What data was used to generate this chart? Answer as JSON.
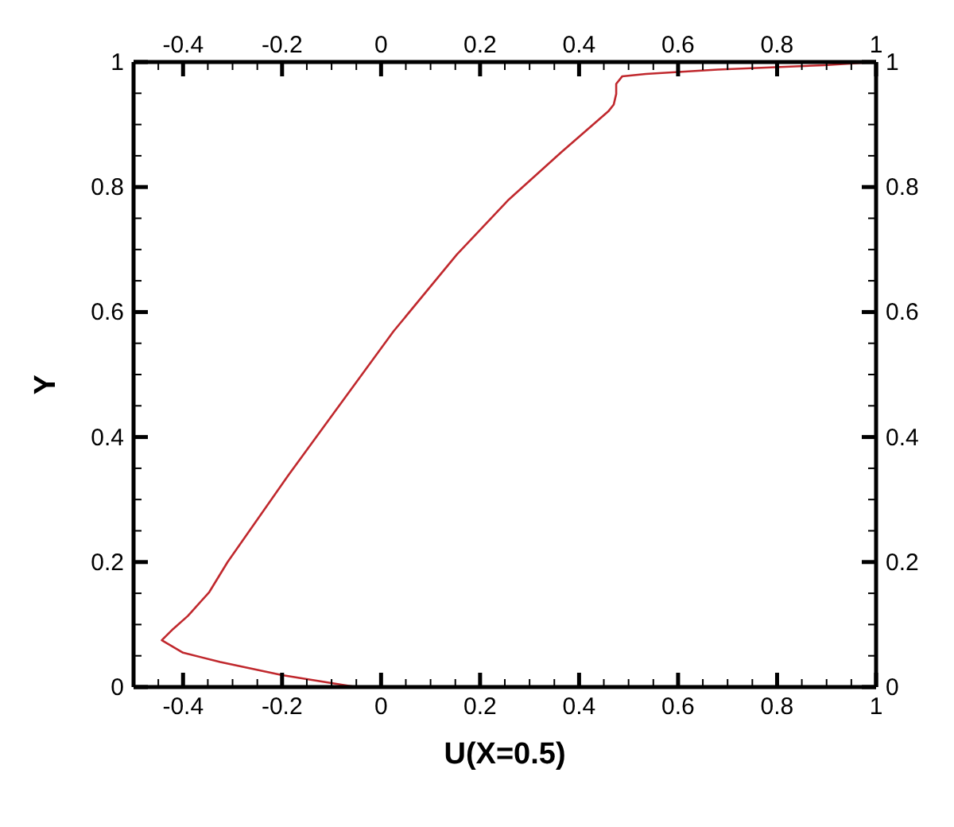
{
  "chart_data": {
    "type": "line",
    "xlabel": "U(X=0.5)",
    "ylabel": "Y",
    "x": [
      -0.05,
      -0.2,
      -0.325,
      -0.4,
      -0.443,
      -0.42,
      -0.39,
      -0.347,
      -0.31,
      -0.188,
      -0.083,
      0.025,
      0.153,
      0.258,
      0.363,
      0.459,
      0.47,
      0.475,
      0.475,
      0.487,
      0.535,
      0.68,
      0.895,
      1
    ],
    "series": [
      {
        "color": "#c0282d",
        "values": [
          0,
          0.019,
          0.04,
          0.055,
          0.075,
          0.093,
          0.114,
          0.152,
          0.2,
          0.338,
          0.452,
          0.569,
          0.692,
          0.78,
          0.855,
          0.921,
          0.932,
          0.949,
          0.965,
          0.977,
          0.981,
          0.988,
          0.995,
          1
        ]
      }
    ],
    "xlim": [
      -0.5,
      1
    ],
    "xticks": [
      {
        "value": -0.45,
        "label": null
      },
      -0.4,
      {
        "value": -0.35,
        "label": null
      },
      {
        "value": -0.3,
        "label": null
      },
      {
        "value": -0.25,
        "label": null
      },
      -0.2,
      {
        "value": -0.15,
        "label": null
      },
      {
        "value": -0.1,
        "label": null
      },
      {
        "value": -0.05,
        "label": null
      },
      0,
      {
        "value": 0.05,
        "label": null
      },
      {
        "value": 0.1,
        "label": null
      },
      {
        "value": 0.15,
        "label": null
      },
      0.2,
      {
        "value": 0.25,
        "label": null
      },
      {
        "value": 0.3,
        "label": null
      },
      {
        "value": 0.35,
        "label": null
      },
      0.4,
      {
        "value": 0.45,
        "label": null
      },
      {
        "value": 0.5,
        "label": null
      },
      {
        "value": 0.55,
        "label": null
      },
      0.6,
      {
        "value": 0.65,
        "label": null
      },
      {
        "value": 0.7,
        "label": null
      },
      {
        "value": 0.75,
        "label": null
      },
      0.8,
      {
        "value": 0.85,
        "label": null
      },
      {
        "value": 0.9,
        "label": null
      },
      {
        "value": 0.95,
        "label": null
      },
      1
    ],
    "x2lim": [
      -0.5,
      1
    ],
    "x2ticks": [
      {
        "value": -0.45,
        "label": null
      },
      -0.4,
      {
        "value": -0.35,
        "label": null
      },
      {
        "value": -0.3,
        "label": null
      },
      {
        "value": -0.25,
        "label": null
      },
      -0.2,
      {
        "value": -0.15,
        "label": null
      },
      {
        "value": -0.1,
        "label": null
      },
      {
        "value": -0.05,
        "label": null
      },
      0,
      {
        "value": 0.05,
        "label": null
      },
      {
        "value": 0.1,
        "label": null
      },
      {
        "value": 0.15,
        "label": null
      },
      0.2,
      {
        "value": 0.25,
        "label": null
      },
      {
        "value": 0.3,
        "label": null
      },
      {
        "value": 0.35,
        "label": null
      },
      0.4,
      {
        "value": 0.45,
        "label": null
      },
      {
        "value": 0.5,
        "label": null
      },
      {
        "value": 0.55,
        "label": null
      },
      0.6,
      {
        "value": 0.65,
        "label": null
      },
      {
        "value": 0.7,
        "label": null
      },
      {
        "value": 0.75,
        "label": null
      },
      0.8,
      {
        "value": 0.85,
        "label": null
      },
      {
        "value": 0.9,
        "label": null
      },
      {
        "value": 0.95,
        "label": null
      },
      1
    ],
    "ylim": [
      0,
      1
    ],
    "yticks": [
      0,
      {
        "value": 0.05,
        "label": null
      },
      {
        "value": 0.1,
        "label": null
      },
      {
        "value": 0.15,
        "label": null
      },
      0.2,
      {
        "value": 0.25,
        "label": null
      },
      {
        "value": 0.3,
        "label": null
      },
      {
        "value": 0.35,
        "label": null
      },
      0.4,
      {
        "value": 0.45,
        "label": null
      },
      {
        "value": 0.5,
        "label": null
      },
      {
        "value": 0.55,
        "label": null
      },
      0.6,
      {
        "value": 0.65,
        "label": null
      },
      {
        "value": 0.7,
        "label": null
      },
      {
        "value": 0.75,
        "label": null
      },
      0.8,
      {
        "value": 0.85,
        "label": null
      },
      {
        "value": 0.9,
        "label": null
      },
      {
        "value": 0.95,
        "label": null
      },
      1
    ],
    "y2lim": [
      0,
      1
    ],
    "y2ticks": [
      0,
      {
        "value": 0.05,
        "label": null
      },
      {
        "value": 0.1,
        "label": null
      },
      {
        "value": 0.15,
        "label": null
      },
      0.2,
      {
        "value": 0.25,
        "label": null
      },
      {
        "value": 0.3,
        "label": null
      },
      {
        "value": 0.35,
        "label": null
      },
      0.4,
      {
        "value": 0.45,
        "label": null
      },
      {
        "value": 0.5,
        "label": null
      },
      {
        "value": 0.55,
        "label": null
      },
      0.6,
      {
        "value": 0.65,
        "label": null
      },
      {
        "value": 0.7,
        "label": null
      },
      {
        "value": 0.75,
        "label": null
      },
      0.8,
      {
        "value": 0.85,
        "label": null
      },
      {
        "value": 0.9,
        "label": null
      },
      {
        "value": 0.95,
        "label": null
      },
      1
    ],
    "line_style": "solid",
    "marker": "none",
    "grid": false,
    "legend": false
  }
}
